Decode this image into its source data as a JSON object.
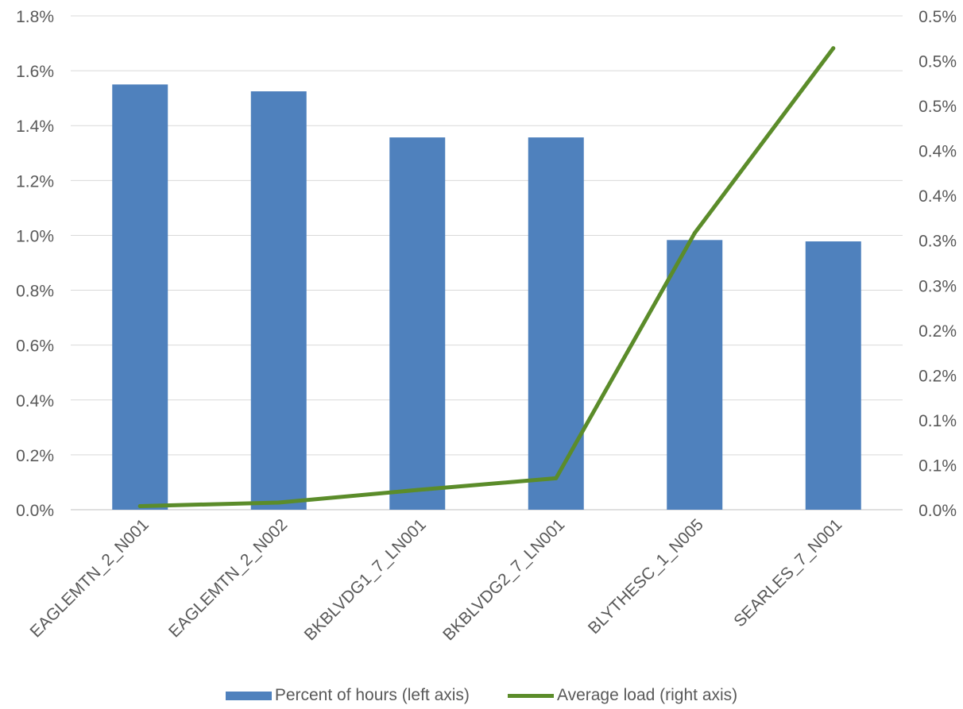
{
  "chart_data": {
    "type": "bar",
    "title": "",
    "xlabel": "",
    "ylabel": "",
    "categories": [
      "EAGLEMTN_2_N001",
      "EAGLEMTN_2_N002",
      "BKBLVDG1_7_LN001",
      "BKBLVDG2_7_LN001",
      "BLYTHESC_1_N005",
      "SEARLES_7_N001"
    ],
    "series": [
      {
        "name": "Percent of hours (left axis)",
        "type": "bar",
        "axis": "left",
        "color": "#4f81bd",
        "values": [
          1.55,
          1.525,
          1.357,
          1.357,
          0.983,
          0.978
        ]
      },
      {
        "name": "Average load (right axis)",
        "type": "line",
        "axis": "right",
        "color": "#5b8c2a",
        "values": [
          0.004,
          0.008,
          0.022,
          0.035,
          0.308,
          0.514
        ]
      }
    ],
    "left_axis": {
      "ylim": [
        0,
        1.8
      ],
      "ticks": [
        0,
        0.2,
        0.4,
        0.6,
        0.8,
        1.0,
        1.2,
        1.4,
        1.6,
        1.8
      ],
      "tick_labels": [
        "0.0%",
        "0.2%",
        "0.4%",
        "0.6%",
        "0.8%",
        "1.0%",
        "1.2%",
        "1.4%",
        "1.6%",
        "1.8%"
      ]
    },
    "right_axis": {
      "ylim": [
        0,
        0.55
      ],
      "ticks": [
        0,
        0.05,
        0.1,
        0.15,
        0.2,
        0.25,
        0.3,
        0.35,
        0.4,
        0.45,
        0.5,
        0.55
      ],
      "tick_labels": [
        "0.0%",
        "0.1%",
        "0.1%",
        "0.2%",
        "0.2%",
        "0.3%",
        "0.3%",
        "0.4%",
        "0.4%",
        "0.5%",
        "0.5%",
        "0.5%"
      ]
    },
    "grid": true,
    "legend_position": "bottom"
  }
}
